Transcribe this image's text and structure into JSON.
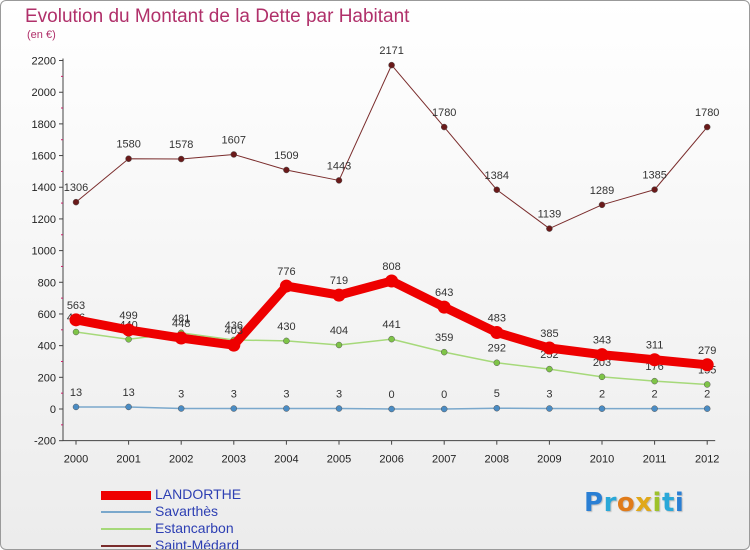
{
  "header": {
    "title": "Evolution du Montant de la Dette par Habitant",
    "subtitle": "(en €)"
  },
  "logo": {
    "text": "Proxiti",
    "letters": [
      {
        "char": "P",
        "color": "#2a7fd4"
      },
      {
        "char": "r",
        "color": "#2aa8d8"
      },
      {
        "char": "o",
        "color": "#e07b1a"
      },
      {
        "char": "x",
        "color": "#e0a81a"
      },
      {
        "char": "i",
        "color": "#9dc22b"
      },
      {
        "char": "t",
        "color": "#2aa8d8"
      },
      {
        "char": "i",
        "color": "#2a7fd4"
      }
    ]
  },
  "chart_data": {
    "type": "line",
    "title": "Evolution du Montant de la Dette par Habitant",
    "subtitle": "(en €)",
    "xlabel": "",
    "ylabel": "",
    "x": [
      "2000",
      "2001",
      "2002",
      "2003",
      "2004",
      "2005",
      "2006",
      "2007",
      "2008",
      "2009",
      "2010",
      "2011",
      "2012"
    ],
    "ylim": [
      -200,
      2200
    ],
    "yticks": [
      -200,
      0,
      200,
      400,
      600,
      800,
      1000,
      1200,
      1400,
      1600,
      1800,
      2000,
      2200
    ],
    "grid": false,
    "legend_position": "bottom-left",
    "series": [
      {
        "name": "Saint-Médard",
        "color": "#7a2c2c",
        "marker": "#6a1a1a",
        "width": 1,
        "values": [
          1306,
          1580,
          1578,
          1607,
          1509,
          1443,
          2171,
          1780,
          1384,
          1139,
          1289,
          1385,
          1780
        ],
        "labels": [
          "1306",
          "1580",
          "1578",
          "1607",
          "1509",
          "1443",
          "2171",
          "1780",
          "1384",
          "1139",
          "1289",
          "1385",
          "1780"
        ]
      },
      {
        "name": "Estancarbon",
        "color": "#a6d97a",
        "marker": "#7ec447",
        "width": 1.5,
        "values": [
          486,
          440,
          481,
          436,
          430,
          404,
          441,
          359,
          292,
          252,
          203,
          176,
          155
        ],
        "labels": [
          "486",
          "440",
          "481",
          "436",
          "430",
          "404",
          "441",
          "359",
          "292",
          "252",
          "203",
          "176",
          "155"
        ]
      },
      {
        "name": "Savarthès",
        "color": "#7aa8cc",
        "marker": "#4a8cc4",
        "width": 1.5,
        "values": [
          13,
          13,
          3,
          3,
          3,
          3,
          0,
          0,
          5,
          3,
          2,
          2,
          2
        ],
        "labels": [
          "13",
          "13",
          "3",
          "3",
          "3",
          "3",
          "0",
          "0",
          "5",
          "3",
          "2",
          "2",
          "2"
        ]
      },
      {
        "name": "LANDORTHE",
        "color": "#ee0000",
        "marker": "#ee0000",
        "width": 9,
        "values": [
          563,
          499,
          448,
          403,
          776,
          719,
          808,
          643,
          483,
          385,
          343,
          311,
          279
        ],
        "labels": [
          "563",
          "499",
          "448",
          "403",
          "776",
          "719",
          "808",
          "643",
          "483",
          "385",
          "343",
          "311",
          "279"
        ]
      }
    ],
    "legend_order": [
      "LANDORTHE",
      "Savarthès",
      "Estancarbon",
      "Saint-Médard"
    ]
  }
}
